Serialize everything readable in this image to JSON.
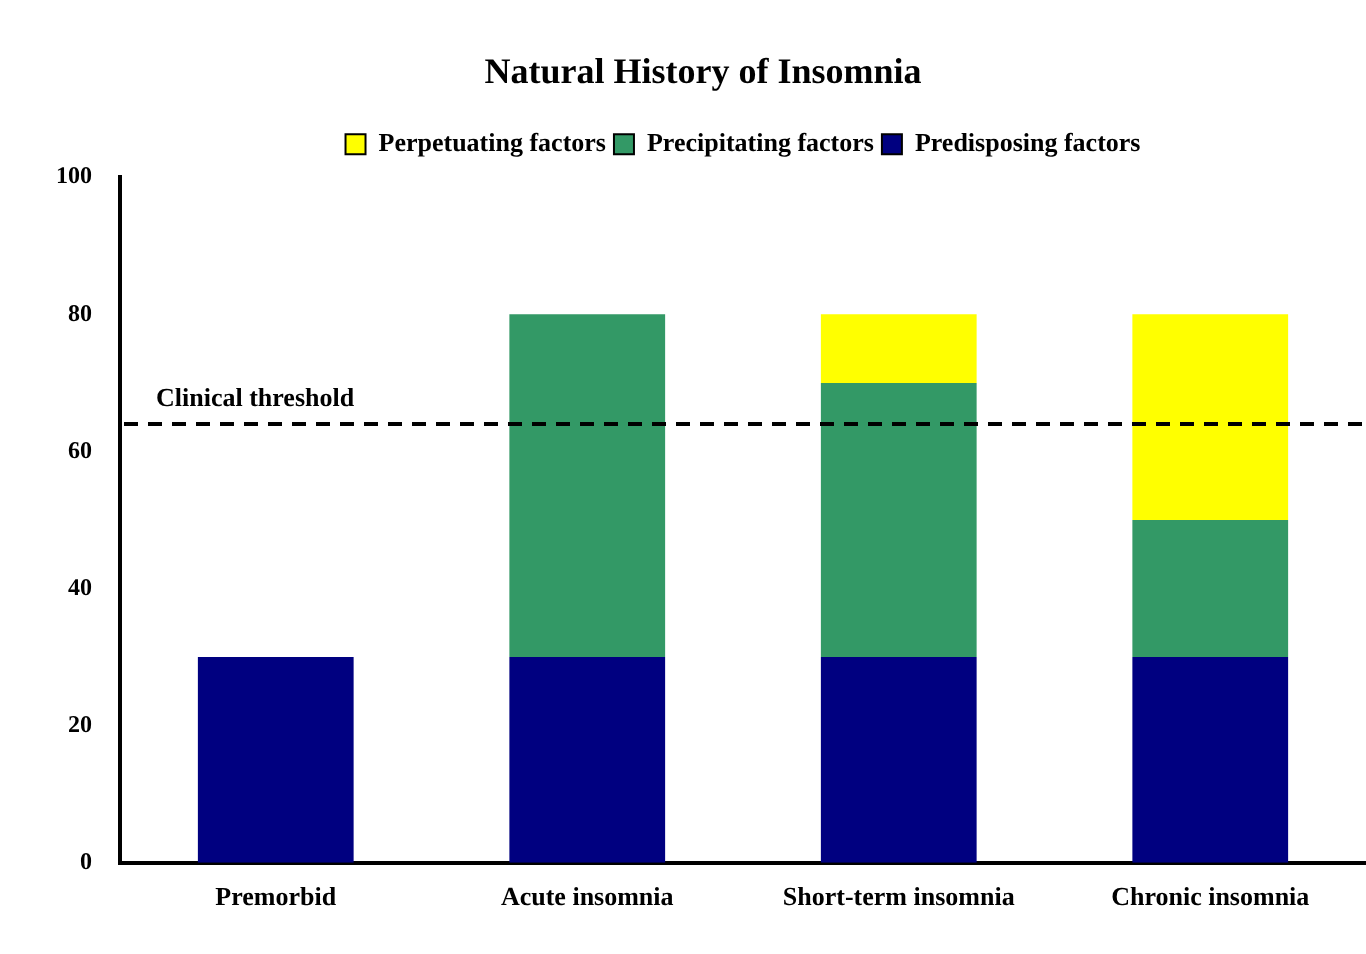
{
  "chart_data": {
    "type": "bar",
    "title": "Natural History of Insomnia",
    "categories": [
      "Premorbid",
      "Acute insomnia",
      "Short-term insomnia",
      "Chronic insomnia"
    ],
    "stacked": true,
    "series": [
      {
        "name": "Predisposing factors",
        "color": "#000080",
        "values": [
          30,
          30,
          30,
          30
        ]
      },
      {
        "name": "Precipitating factors",
        "color": "#339966",
        "values": [
          null,
          50,
          40,
          20
        ]
      },
      {
        "name": "Perpetuating factors",
        "color": "#ffff00",
        "values": [
          null,
          null,
          10,
          30
        ]
      }
    ],
    "ylim": [
      0,
      100
    ],
    "yticks": [
      0,
      20,
      40,
      60,
      80,
      100
    ],
    "grid": false,
    "legend": "top",
    "ref_lines": [
      {
        "axis": "y",
        "value": 64,
        "label": "Clinical threshold",
        "line_style": "dashed",
        "color": "#000000"
      }
    ]
  }
}
